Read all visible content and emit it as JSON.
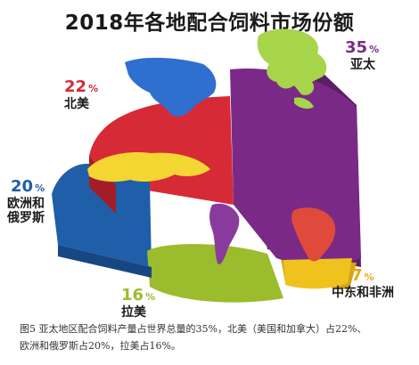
{
  "title": "2018年各地配合饲料市场份额",
  "chart_data": {
    "type": "pie",
    "title": "2018年各地配合饲料市场份额",
    "unit": "%",
    "slices": [
      {
        "label": "亚太",
        "value": 35,
        "color": "#7a2a86"
      },
      {
        "label": "北美",
        "value": 22,
        "color": "#d62a36"
      },
      {
        "label": "欧洲和俄罗斯",
        "value": 20,
        "color": "#1f5ea8"
      },
      {
        "label": "拉美",
        "value": 16,
        "color": "#9bbc2c"
      },
      {
        "label": "中东和非洲",
        "value": 7,
        "color": "#f0c21e"
      }
    ]
  },
  "labels": {
    "apac": {
      "pct": "35",
      "sign": "%",
      "name": "亚太"
    },
    "na": {
      "pct": "22",
      "sign": "%",
      "name": "北美"
    },
    "eur": {
      "pct": "20",
      "sign": "%",
      "name1": "欧洲和",
      "name2": "俄罗斯"
    },
    "lat": {
      "pct": "16",
      "sign": "%",
      "name": "拉美"
    },
    "mea": {
      "pct": "7",
      "sign": "%",
      "name": "中东和非洲"
    }
  },
  "caption": {
    "line1": "图5 亚太地区配合饲料产量占世界总量的35%，北美（美国和加拿大）占22%、",
    "line2": "欧洲和俄罗斯占20%，拉美占16%。"
  },
  "colors": {
    "apac": "#7a2a86",
    "na": "#d62a36",
    "eur": "#1f5ea8",
    "lat": "#9bbc2c",
    "mea": "#f0c21e",
    "map_apac": "#a6d44a",
    "map_na": "#2f6fd0",
    "map_eur": "#f3d632",
    "map_lat": "#8a3a9c",
    "map_mea": "#e04a3a",
    "text_apac": "#7a2a86",
    "text_na": "#d62a36",
    "text_eur": "#1f5ea8",
    "text_lat": "#9bbc2c",
    "text_mea": "#e8a814"
  }
}
